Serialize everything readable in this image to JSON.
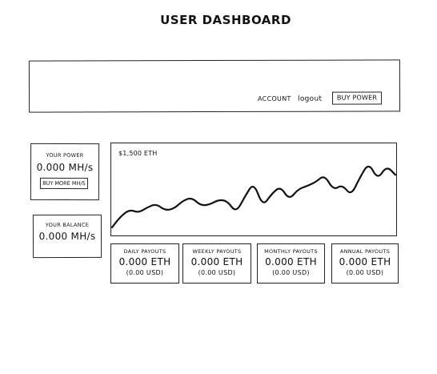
{
  "page": {
    "title": "User Dashboard"
  },
  "header": {
    "account_label": "Account",
    "logout_label": "logout",
    "buy_power_label": "Buy Power"
  },
  "power_card": {
    "label": "Your Power",
    "value": "0.000 MH/s",
    "button_label": "Buy more MH/s"
  },
  "balance_card": {
    "label": "Your Balance",
    "value": "0.000 MH/s"
  },
  "chart": {
    "caption": "$1,500 ETH"
  },
  "chart_data": {
    "type": "line",
    "title": "$1,500 ETH",
    "series": [
      {
        "values": [
          8,
          22,
          30,
          26,
          33,
          37,
          29,
          31,
          41,
          45,
          35,
          36,
          42,
          41,
          26,
          46,
          64,
          34,
          49,
          59,
          42,
          55,
          59,
          64,
          73,
          54,
          61,
          47,
          70,
          88,
          67,
          84,
          73
        ]
      }
    ]
  },
  "payouts": [
    {
      "label": "Daily Payouts",
      "value": "0.000 ETH",
      "sub": "(0.00 USD)"
    },
    {
      "label": "Weekly Payouts",
      "value": "0.000 ETH",
      "sub": "(0.00 USD)"
    },
    {
      "label": "Monthly Payouts",
      "value": "0.000 ETH",
      "sub": "(0.00 USD)"
    },
    {
      "label": "Annual Payouts",
      "value": "0.000 ETH",
      "sub": "(0.00 USD)"
    }
  ]
}
